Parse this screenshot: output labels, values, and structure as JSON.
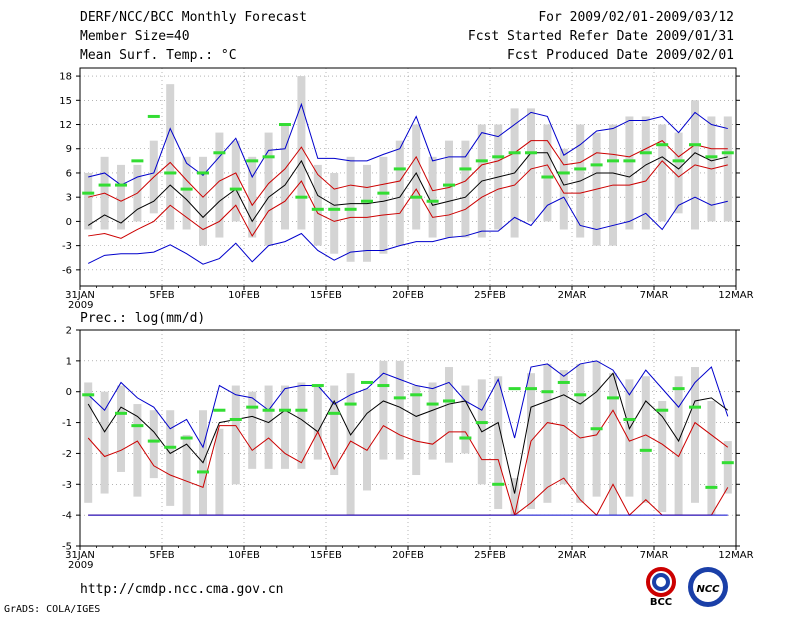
{
  "header": {
    "title": "DERF/NCC/BCC Monthly Forecast",
    "member_size": "Member Size=40",
    "variable": "Mean Surf. Temp.: °C",
    "period": "For 2009/02/01-2009/03/12",
    "started": "Fcst Started Refer Date 2009/01/31",
    "produced": "Fcst Produced Date 2009/02/01"
  },
  "footer": {
    "url": "http://cmdp.ncc.cma.gov.cn",
    "grads": "GrADS: COLA/IGES",
    "logo_bcc": "BCC",
    "logo_ncc": "NCC"
  },
  "colors": {
    "max": "#0000cc",
    "min": "#0000cc",
    "upper": "#cc0000",
    "lower": "#cc0000",
    "mean": "#000000",
    "obs": "#33dd33",
    "box": "#d4d4d4"
  },
  "chart_data": [
    {
      "type": "line",
      "title": "Mean Surf. Temp.: °C",
      "x_tick_labels": [
        "31JAN",
        "5FEB",
        "10FEB",
        "15FEB",
        "20FEB",
        "25FEB",
        "2MAR",
        "7MAR",
        "12MAR"
      ],
      "x_year_label": "2009",
      "ylim": [
        -8,
        19
      ],
      "y_ticks": [
        -6,
        -3,
        0,
        3,
        6,
        9,
        12,
        15,
        18
      ],
      "n_days": 40,
      "series": [
        {
          "name": "max",
          "values": [
            -5.2,
            -4.2,
            -4,
            -4,
            -3.8,
            -2.9,
            -4,
            -5.3,
            -4.6,
            -2.7,
            -5,
            -3,
            -2.5,
            -1.5,
            -3.6,
            -4.8,
            -3.8,
            -3.6,
            -3.6,
            -3,
            -2.5,
            -2.5,
            -2,
            -1.8,
            -1.2,
            -1.2,
            0.5,
            -0.5,
            2,
            3,
            -0.5,
            -1,
            -0.5,
            0,
            1,
            -1,
            2,
            3,
            2,
            2.5
          ]
        },
        {
          "name": "max_upper",
          "values": [
            5.5,
            6,
            4.5,
            5.5,
            6,
            11.5,
            7.2,
            5.7,
            8,
            10.3,
            5.5,
            8.8,
            9,
            14.5,
            7.8,
            7.8,
            7.5,
            7.5,
            8.3,
            9,
            13,
            7.5,
            8,
            8,
            11,
            10.5,
            12,
            13.5,
            13,
            8.2,
            9.5,
            11.2,
            11.5,
            12.5,
            12.5,
            13,
            11,
            13.5,
            12,
            11.5
          ]
        },
        {
          "name": "upper",
          "values": [
            3,
            3.5,
            2.5,
            3.5,
            5.5,
            7.3,
            5.1,
            3,
            5,
            6,
            2,
            4.7,
            6.5,
            9.2,
            5.8,
            4,
            4.5,
            4.2,
            4.6,
            5,
            8,
            3.8,
            4.2,
            5,
            7,
            7.5,
            8.5,
            10,
            10,
            7,
            7.3,
            8.5,
            8.3,
            8,
            9,
            10,
            8,
            9.5,
            9,
            9
          ]
        },
        {
          "name": "mean",
          "values": [
            -0.5,
            0.8,
            -0.2,
            1.5,
            2.5,
            4.5,
            2.7,
            0.5,
            2.5,
            4,
            0,
            3,
            4.5,
            7.5,
            3.2,
            2,
            2.2,
            2.2,
            2.5,
            3,
            6,
            2,
            2.5,
            3,
            5,
            5.5,
            6,
            8.5,
            8.5,
            4.5,
            5,
            6,
            6,
            5.5,
            7,
            8,
            6.5,
            8.5,
            7.5,
            8
          ]
        },
        {
          "name": "lower",
          "values": [
            -1.8,
            -1.5,
            -2.1,
            -1,
            0,
            2,
            0.5,
            -1,
            0,
            2,
            -1.8,
            1.3,
            2.5,
            5,
            1,
            0,
            0.5,
            0.5,
            0.8,
            1,
            4,
            0.5,
            0.8,
            1.5,
            3,
            4,
            4.5,
            6.5,
            7,
            3.5,
            3.5,
            4,
            4.5,
            4.5,
            5,
            7.5,
            5.5,
            7,
            6.5,
            7
          ]
        }
      ],
      "box_ranges": [
        [
          -1,
          6
        ],
        [
          -1,
          8
        ],
        [
          -1,
          7
        ],
        [
          0,
          7
        ],
        [
          1,
          10
        ],
        [
          -1,
          17
        ],
        [
          -1,
          8
        ],
        [
          -3,
          8
        ],
        [
          -2,
          11
        ],
        [
          0,
          10
        ],
        [
          -2,
          8
        ],
        [
          -3,
          11
        ],
        [
          -1,
          12
        ],
        [
          -1,
          18
        ],
        [
          -3,
          7
        ],
        [
          -4,
          6
        ],
        [
          -5,
          8
        ],
        [
          -5,
          7
        ],
        [
          -4,
          8
        ],
        [
          -3,
          10
        ],
        [
          -1,
          12
        ],
        [
          -2,
          8
        ],
        [
          -2,
          10
        ],
        [
          -2,
          10
        ],
        [
          -2,
          12
        ],
        [
          -1,
          12
        ],
        [
          -2,
          14
        ],
        [
          0,
          14
        ],
        [
          0,
          12
        ],
        [
          -1,
          9
        ],
        [
          -2,
          12
        ],
        [
          -3,
          11
        ],
        [
          -3,
          12
        ],
        [
          -1,
          13
        ],
        [
          -1,
          13
        ],
        [
          0,
          12
        ],
        [
          1,
          11
        ],
        [
          -1,
          15
        ],
        [
          0,
          13
        ],
        [
          0,
          13
        ]
      ],
      "observed": [
        3.5,
        4.5,
        4.5,
        7.5,
        13,
        6,
        4,
        6,
        8.5,
        4,
        7.5,
        8,
        12,
        3,
        1.5,
        1.5,
        1.5,
        2.5,
        3.5,
        6.5,
        3,
        2.5,
        4.5,
        6.5,
        7.5,
        8,
        8.5,
        8.5,
        5.5,
        6,
        6.5,
        7,
        7.5,
        7.5,
        8.5,
        9.5,
        7.5,
        9.5,
        8,
        8.5
      ]
    },
    {
      "type": "line",
      "title": "Prec.: log(mm/d)",
      "x_tick_labels": [
        "31JAN",
        "5FEB",
        "10FEB",
        "15FEB",
        "20FEB",
        "25FEB",
        "2MAR",
        "7MAR",
        "12MAR"
      ],
      "x_year_label": "2009",
      "ylim": [
        -5,
        2
      ],
      "y_ticks": [
        -5,
        -4,
        -3,
        -2,
        -1,
        0,
        1,
        2
      ],
      "n_days": 40,
      "series": [
        {
          "name": "max",
          "values": [
            -0.1,
            -0.6,
            0.3,
            -0.2,
            -0.5,
            -1.2,
            -0.9,
            -1.8,
            0.2,
            -0.1,
            -0.2,
            -0.6,
            0.1,
            0.2,
            0.2,
            -0.4,
            -0.1,
            0.1,
            0.6,
            0.4,
            0.2,
            0.1,
            0.3,
            -0.3,
            -0.6,
            0.4,
            -1.5,
            0.8,
            0.9,
            0.5,
            0.9,
            1,
            0.7,
            -0.1,
            0.7,
            0.1,
            -0.5,
            0.3,
            0.8,
            -0.8
          ]
        },
        {
          "name": "mean",
          "values": [
            -0.4,
            -1.3,
            -0.5,
            -0.8,
            -1.3,
            -2,
            -1.7,
            -2.3,
            -1,
            -0.9,
            -0.8,
            -1,
            -0.6,
            -0.9,
            -1.3,
            -0.3,
            -1.4,
            -0.7,
            -0.3,
            -0.5,
            -0.8,
            -0.6,
            -0.4,
            -0.3,
            -1.3,
            -1,
            -3.3,
            -0.5,
            -0.3,
            -0.1,
            -0.4,
            0,
            0.6,
            -1.2,
            -0.3,
            -0.8,
            -1.6,
            -0.3,
            -0.2,
            -0.6
          ]
        },
        {
          "name": "upper",
          "values": [
            -1.5,
            -2.1,
            -1.9,
            -1.6,
            -2.4,
            -2.7,
            -2.9,
            -3.1,
            -1.1,
            -1.1,
            -1.9,
            -1.5,
            -2,
            -2.3,
            -1.3,
            -2.5,
            -1.6,
            -1.9,
            -1.1,
            -1.4,
            -1.6,
            -1.7,
            -1.3,
            -1.3,
            -2.2,
            -2.2,
            -4,
            -1.6,
            -1,
            -1.1,
            -1.5,
            -1.4,
            -0.6,
            -1.6,
            -1.4,
            -1.7,
            -2.1,
            -1,
            -1.4,
            -1.8
          ]
        },
        {
          "name": "lower",
          "values": [
            -4,
            -4,
            -4,
            -4,
            -4,
            -4,
            -4,
            -4,
            -4,
            -4,
            -4,
            -4,
            -4,
            -4,
            -4,
            -4,
            -4,
            -4,
            -4,
            -4,
            -4,
            -4,
            -4,
            -4,
            -4,
            -4,
            -4,
            -3.6,
            -3.1,
            -2.8,
            -3.5,
            -4,
            -3,
            -4,
            -3.5,
            -4,
            -4,
            -4,
            -4,
            -3.1
          ]
        },
        {
          "name": "min",
          "values": [
            -4,
            -4,
            -4,
            -4,
            -4,
            -4,
            -4,
            -4,
            -4,
            -4,
            -4,
            -4,
            -4,
            -4,
            -4,
            -4,
            -4,
            -4,
            -4,
            -4,
            -4,
            -4,
            -4,
            -4,
            -4,
            -4,
            -4,
            -4,
            -4,
            -4,
            -4,
            -4,
            -4,
            -4,
            -4,
            -4,
            -4,
            -4,
            -4,
            -4
          ]
        }
      ],
      "box_ranges": [
        [
          -3.6,
          0.3
        ],
        [
          -3.3,
          0
        ],
        [
          -2.6,
          0.2
        ],
        [
          -3.4,
          -0.4
        ],
        [
          -2.8,
          -0.6
        ],
        [
          -3.7,
          -0.6
        ],
        [
          -4,
          -1.4
        ],
        [
          -4,
          -0.6
        ],
        [
          -4,
          -1.2
        ],
        [
          -3,
          0.2
        ],
        [
          -2.5,
          0
        ],
        [
          -2.5,
          0.2
        ],
        [
          -2.5,
          0.2
        ],
        [
          -2.5,
          0.3
        ],
        [
          -2.2,
          0.2
        ],
        [
          -2.7,
          0.2
        ],
        [
          -4,
          0.6
        ],
        [
          -3.2,
          0.1
        ],
        [
          -2.2,
          1
        ],
        [
          -2.2,
          1
        ],
        [
          -2.7,
          0.2
        ],
        [
          -2.2,
          0.3
        ],
        [
          -2.3,
          0.8
        ],
        [
          -2,
          0.2
        ],
        [
          -3,
          0.4
        ],
        [
          -3.8,
          0.5
        ],
        [
          -4,
          -2.8
        ],
        [
          -3.8,
          0.6
        ],
        [
          -3.6,
          0.9
        ],
        [
          -3,
          0.7
        ],
        [
          -3.6,
          0.9
        ],
        [
          -3.4,
          1
        ],
        [
          -4,
          0.6
        ],
        [
          -3.4,
          0.4
        ],
        [
          -3.6,
          0.5
        ],
        [
          -3.9,
          -0.3
        ],
        [
          -4,
          0.5
        ],
        [
          -3.6,
          0.8
        ],
        [
          -4,
          -0.3
        ],
        [
          -3.3,
          -1.6
        ]
      ],
      "observed": [
        -0.1,
        null,
        -0.7,
        -1.1,
        -1.6,
        -1.8,
        -1.5,
        -2.6,
        -0.6,
        -0.9,
        -0.5,
        -0.6,
        -0.6,
        -0.6,
        0.2,
        -0.7,
        -0.4,
        0.3,
        0.2,
        -0.2,
        -0.1,
        -0.4,
        -0.3,
        -1.5,
        -1,
        -3,
        0.1,
        0.1,
        0,
        0.3,
        -0.1,
        -1.2,
        -0.2,
        -0.9,
        -1.9,
        -0.6,
        0.1,
        -0.5,
        -3.1,
        -2.3
      ]
    }
  ]
}
